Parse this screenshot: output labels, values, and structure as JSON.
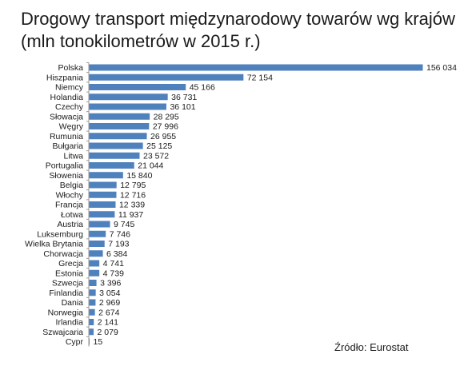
{
  "chart_data": {
    "type": "bar",
    "orientation": "horizontal",
    "title": "Drogowy transport międzynarodowy towarów wg krajów (mln tonokilometrów w 2015 r.)",
    "source": "Źródło: Eurostat",
    "categories": [
      "Polska",
      "Hiszpania",
      "Niemcy",
      "Holandia",
      "Czechy",
      "Słowacja",
      "Węgry",
      "Rumunia",
      "Bułgaria",
      "Litwa",
      "Portugalia",
      "Słowenia",
      "Belgia",
      "Włochy",
      "Francja",
      "Łotwa",
      "Austria",
      "Luksemburg",
      "Wielka Brytania",
      "Chorwacja",
      "Grecja",
      "Estonia",
      "Szwecja",
      "Finlandia",
      "Dania",
      "Norwegia",
      "Irlandia",
      "Szwajcaria",
      "Cypr"
    ],
    "values": [
      156034,
      72154,
      45166,
      36731,
      36101,
      28295,
      27996,
      26955,
      25125,
      23572,
      21044,
      15840,
      12795,
      12716,
      12339,
      11937,
      9745,
      7746,
      7193,
      6384,
      4741,
      4739,
      3396,
      3054,
      2969,
      2674,
      2141,
      2079,
      15
    ],
    "value_labels": [
      "156 034",
      "72 154",
      "45 166",
      "36 731",
      "36 101",
      "28 295",
      "27 996",
      "26 955",
      "25 125",
      "23 572",
      "21 044",
      "15 840",
      "12 795",
      "12 716",
      "12 339",
      "11 937",
      "9 745",
      "7 746",
      "7 193",
      "6 384",
      "4 741",
      "4 739",
      "3 396",
      "3 054",
      "2 969",
      "2 674",
      "2 141",
      "2 079",
      "15"
    ],
    "bar_color": "#4f81bd",
    "grid": false,
    "legend": "none"
  }
}
